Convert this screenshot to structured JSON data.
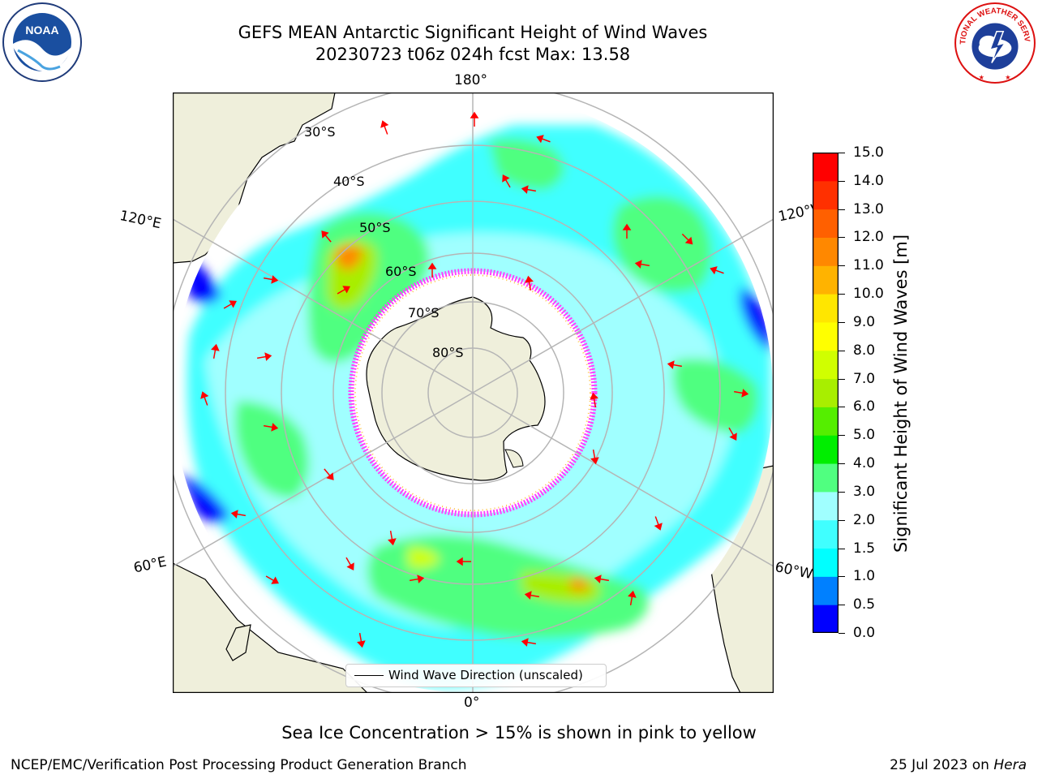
{
  "title_line1": "GEFS MEAN Antarctic Significant Height of Wind Waves",
  "title_line2": "20230723 t06z 024h fcst   Max: 13.58",
  "logos": {
    "noaa_text": "NOAA",
    "noaa_ring": "NATIONAL OCEANIC AND ATMOSPHERIC ADMINISTRATION · U.S. DEPARTMENT OF COMMERCE",
    "nws_ring": "NATIONAL WEATHER SERVICE"
  },
  "map": {
    "projection": "south-polar-stereographic",
    "longitude_labels": {
      "top": "180°",
      "bottom": "0°",
      "upper_left": "120°E",
      "lower_left": "60°E",
      "upper_right": "120°W",
      "lower_right": "60°W"
    },
    "latitude_labels": [
      "30°S",
      "40°S",
      "50°S",
      "60°S",
      "70°S",
      "80°S"
    ],
    "legend_entry": "Wind Wave Direction (unscaled)",
    "field_max": 13.58,
    "colors": {
      "land": "#efefdb",
      "graticule": "#b5b5b5",
      "arrows": "#ff0000",
      "ice_edge": "#ff40ff"
    }
  },
  "colorbar": {
    "title": "Significant Height of Wind Waves [m]",
    "tick_labels": [
      "0.0",
      "0.5",
      "1.0",
      "1.5",
      "2.0",
      "3.0",
      "4.0",
      "5.0",
      "6.0",
      "7.0",
      "8.0",
      "9.0",
      "10.0",
      "11.0",
      "12.0",
      "13.0",
      "14.0",
      "15.0"
    ],
    "colors": [
      "#0000ff",
      "#0080ff",
      "#00ffff",
      "#40ffff",
      "#a0ffff",
      "#50ff80",
      "#00ee00",
      "#55ee00",
      "#a8ee00",
      "#d0ff00",
      "#ffff00",
      "#ffe600",
      "#ffb300",
      "#ff8800",
      "#ff6000",
      "#ff3000",
      "#ff0000"
    ]
  },
  "ice_note": "Sea Ice Concentration > 15% is shown in pink to yellow",
  "credit": "NCEP/EMC/Verification Post Processing Product Generation Branch",
  "date_note": "25 Jul 2023 on",
  "date_host": "Hera"
}
